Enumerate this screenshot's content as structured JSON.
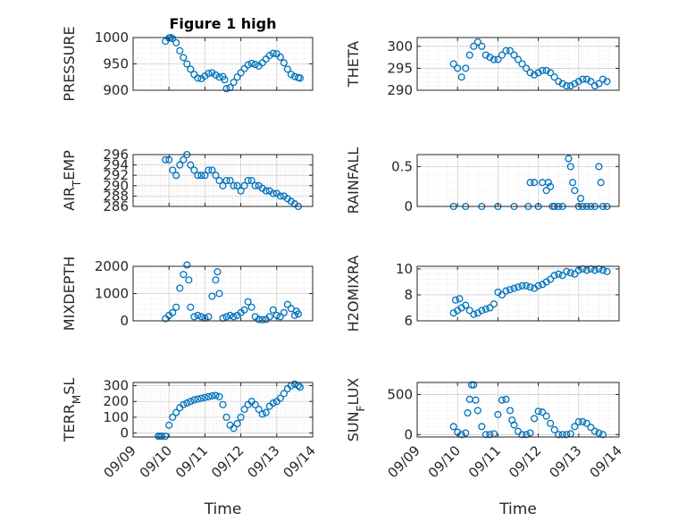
{
  "figure": {
    "title": "Figure 1 high",
    "xlabel": "Time",
    "marker_color": "#0072BD"
  },
  "chart_data": [
    {
      "type": "scatter",
      "ylabel": "PRESSURE",
      "title": "Figure 1 high",
      "xlim": [
        "09/09",
        "09/14"
      ],
      "ylim": [
        900,
        1000
      ],
      "yticks": [
        900,
        950,
        1000
      ],
      "grid": "on",
      "x": [
        9.9,
        10.0,
        10.05,
        10.1,
        10.2,
        10.3,
        10.4,
        10.5,
        10.6,
        10.7,
        10.8,
        10.9,
        11.0,
        11.1,
        11.2,
        11.3,
        11.4,
        11.5,
        11.55,
        11.6,
        11.7,
        11.8,
        11.9,
        12.0,
        12.1,
        12.2,
        12.3,
        12.4,
        12.5,
        12.6,
        12.7,
        12.8,
        12.9,
        13.0,
        13.1,
        13.2,
        13.3,
        13.4,
        13.5,
        13.6,
        13.65
      ],
      "y": [
        993,
        999,
        1000,
        998,
        990,
        975,
        962,
        950,
        940,
        930,
        923,
        922,
        927,
        932,
        933,
        929,
        925,
        926,
        920,
        903,
        905,
        915,
        925,
        933,
        941,
        948,
        951,
        949,
        946,
        952,
        959,
        966,
        970,
        969,
        963,
        952,
        940,
        930,
        926,
        924,
        923
      ]
    },
    {
      "type": "scatter",
      "ylabel": "THETA",
      "xlim": [
        "09/09",
        "09/14"
      ],
      "ylim": [
        290,
        302
      ],
      "yticks": [
        290,
        295,
        300
      ],
      "grid": "on",
      "x": [
        9.9,
        10.0,
        10.1,
        10.2,
        10.3,
        10.4,
        10.5,
        10.6,
        10.7,
        10.8,
        10.9,
        11.0,
        11.1,
        11.2,
        11.3,
        11.4,
        11.5,
        11.6,
        11.7,
        11.8,
        11.9,
        12.0,
        12.1,
        12.2,
        12.3,
        12.4,
        12.5,
        12.6,
        12.7,
        12.8,
        12.9,
        13.0,
        13.1,
        13.2,
        13.3,
        13.4,
        13.5,
        13.6,
        13.7
      ],
      "y": [
        296,
        295,
        293,
        295,
        298,
        300,
        301,
        300,
        298,
        297.5,
        297,
        297,
        298,
        299,
        299,
        298,
        297,
        296,
        295,
        294,
        293.5,
        294,
        294.5,
        294.5,
        294,
        293,
        292,
        291.5,
        291,
        291,
        291.5,
        292,
        292.5,
        292.5,
        292,
        291,
        291.5,
        292.5,
        292
      ]
    },
    {
      "type": "scatter",
      "ylabel": "AIR_TEMP",
      "xlim": [
        "09/09",
        "09/14"
      ],
      "ylim": [
        286,
        296
      ],
      "yticks": [
        286,
        288,
        290,
        292,
        294,
        296
      ],
      "grid": "on",
      "x": [
        9.9,
        10.0,
        10.1,
        10.2,
        10.3,
        10.4,
        10.5,
        10.6,
        10.7,
        10.8,
        10.9,
        11.0,
        11.1,
        11.2,
        11.3,
        11.4,
        11.5,
        11.6,
        11.7,
        11.8,
        11.9,
        12.0,
        12.1,
        12.2,
        12.3,
        12.4,
        12.5,
        12.6,
        12.7,
        12.8,
        12.9,
        13.0,
        13.1,
        13.2,
        13.3,
        13.4,
        13.5,
        13.6
      ],
      "y": [
        295,
        295,
        293,
        292,
        294,
        295,
        296,
        294,
        293,
        292,
        292,
        292,
        293,
        293,
        292,
        291,
        290,
        291,
        291,
        290,
        290,
        289,
        290,
        291,
        291,
        290,
        290,
        289.5,
        289,
        289,
        288.5,
        288.5,
        288,
        288,
        287.5,
        287,
        286.5,
        286
      ]
    },
    {
      "type": "scatter",
      "ylabel": "RAINFALL",
      "xlim": [
        "09/09",
        "09/14"
      ],
      "ylim": [
        0,
        0.65
      ],
      "yticks": [
        0,
        0.5
      ],
      "grid": "on",
      "x": [
        9.9,
        10.2,
        10.6,
        11.0,
        11.4,
        11.75,
        11.8,
        11.9,
        12.0,
        12.1,
        12.2,
        12.25,
        12.3,
        12.35,
        12.4,
        12.5,
        12.6,
        12.75,
        12.8,
        12.85,
        12.9,
        13.0,
        13.05,
        13.1,
        13.2,
        13.3,
        13.4,
        13.5,
        13.55,
        13.6,
        13.7
      ],
      "y": [
        0,
        0,
        0,
        0,
        0,
        0,
        0.3,
        0.3,
        0,
        0.3,
        0.2,
        0.3,
        0.25,
        0,
        0,
        0,
        0,
        0.6,
        0.5,
        0.3,
        0.2,
        0,
        0.1,
        0,
        0,
        0,
        0,
        0.5,
        0.3,
        0,
        0
      ]
    },
    {
      "type": "scatter",
      "ylabel": "MIXDEPTH",
      "xlim": [
        "09/09",
        "09/14"
      ],
      "ylim": [
        0,
        2000
      ],
      "yticks": [
        0,
        1000,
        2000
      ],
      "grid": "on",
      "x": [
        9.9,
        10.0,
        10.1,
        10.2,
        10.3,
        10.4,
        10.5,
        10.55,
        10.6,
        10.7,
        10.8,
        10.9,
        11.0,
        11.1,
        11.2,
        11.3,
        11.35,
        11.4,
        11.5,
        11.6,
        11.7,
        11.8,
        11.9,
        12.0,
        12.1,
        12.2,
        12.3,
        12.4,
        12.5,
        12.6,
        12.7,
        12.8,
        12.9,
        13.0,
        13.1,
        13.2,
        13.3,
        13.4,
        13.5,
        13.55,
        13.6
      ],
      "y": [
        80,
        200,
        300,
        500,
        1200,
        1700,
        2050,
        1500,
        500,
        150,
        200,
        150,
        100,
        150,
        900,
        1500,
        1800,
        1000,
        100,
        150,
        200,
        150,
        200,
        300,
        400,
        700,
        500,
        150,
        50,
        40,
        50,
        150,
        400,
        200,
        150,
        300,
        600,
        450,
        200,
        350,
        250
      ]
    },
    {
      "type": "scatter",
      "ylabel": "H2OMIXRA",
      "xlim": [
        "09/09",
        "09/14"
      ],
      "ylim": [
        6,
        10.2
      ],
      "yticks": [
        6,
        8,
        10
      ],
      "grid": "on",
      "x": [
        9.9,
        9.95,
        10.0,
        10.05,
        10.1,
        10.2,
        10.3,
        10.4,
        10.5,
        10.6,
        10.7,
        10.8,
        10.9,
        11.0,
        11.1,
        11.2,
        11.3,
        11.4,
        11.5,
        11.6,
        11.7,
        11.8,
        11.9,
        12.0,
        12.1,
        12.2,
        12.3,
        12.4,
        12.5,
        12.6,
        12.7,
        12.8,
        12.9,
        13.0,
        13.1,
        13.2,
        13.3,
        13.4,
        13.5,
        13.6,
        13.7
      ],
      "y": [
        6.6,
        7.6,
        6.8,
        7.7,
        7.0,
        7.2,
        6.8,
        6.5,
        6.6,
        6.8,
        6.9,
        7.0,
        7.3,
        8.2,
        8.0,
        8.3,
        8.4,
        8.5,
        8.6,
        8.7,
        8.7,
        8.6,
        8.5,
        8.7,
        8.8,
        9.0,
        9.2,
        9.5,
        9.6,
        9.5,
        9.8,
        9.7,
        9.6,
        9.9,
        10.0,
        9.9,
        10.0,
        9.9,
        10.0,
        9.9,
        9.8
      ]
    },
    {
      "type": "scatter",
      "ylabel": "TERR_MSL",
      "xlim": [
        "09/09",
        "09/14"
      ],
      "ylim": [
        -25,
        320
      ],
      "yticks": [
        0,
        100,
        200,
        300
      ],
      "grid": "on",
      "x": [
        9.7,
        9.75,
        9.8,
        9.9,
        10.0,
        10.1,
        10.2,
        10.3,
        10.4,
        10.5,
        10.6,
        10.7,
        10.8,
        10.9,
        11.0,
        11.1,
        11.2,
        11.3,
        11.4,
        11.5,
        11.6,
        11.7,
        11.8,
        11.9,
        12.0,
        12.1,
        12.2,
        12.3,
        12.4,
        12.5,
        12.6,
        12.7,
        12.8,
        12.9,
        13.0,
        13.1,
        13.2,
        13.3,
        13.4,
        13.5,
        13.6,
        13.65
      ],
      "y": [
        -20,
        -20,
        -20,
        -20,
        50,
        100,
        130,
        160,
        180,
        190,
        200,
        210,
        215,
        220,
        225,
        230,
        235,
        238,
        230,
        180,
        100,
        50,
        30,
        60,
        100,
        150,
        180,
        200,
        180,
        150,
        120,
        130,
        170,
        190,
        200,
        220,
        250,
        280,
        300,
        310,
        300,
        290
      ]
    },
    {
      "type": "scatter",
      "ylabel": "SUN_FLUX",
      "xlim": [
        "09/09",
        "09/14"
      ],
      "ylim": [
        -30,
        650
      ],
      "yticks": [
        0,
        500
      ],
      "grid": "on",
      "x": [
        9.9,
        10.0,
        10.1,
        10.2,
        10.25,
        10.3,
        10.35,
        10.4,
        10.45,
        10.5,
        10.6,
        10.7,
        10.8,
        10.9,
        11.0,
        11.1,
        11.2,
        11.3,
        11.35,
        11.4,
        11.5,
        11.6,
        11.7,
        11.8,
        11.9,
        12.0,
        12.1,
        12.2,
        12.3,
        12.4,
        12.5,
        12.6,
        12.7,
        12.8,
        12.9,
        13.0,
        13.1,
        13.2,
        13.3,
        13.4,
        13.5,
        13.6
      ],
      "y": [
        100,
        30,
        0,
        20,
        270,
        440,
        620,
        620,
        430,
        300,
        100,
        0,
        0,
        10,
        250,
        430,
        440,
        300,
        180,
        120,
        40,
        0,
        0,
        20,
        200,
        290,
        280,
        230,
        140,
        60,
        0,
        0,
        0,
        10,
        100,
        160,
        160,
        140,
        90,
        40,
        20,
        0
      ]
    }
  ]
}
